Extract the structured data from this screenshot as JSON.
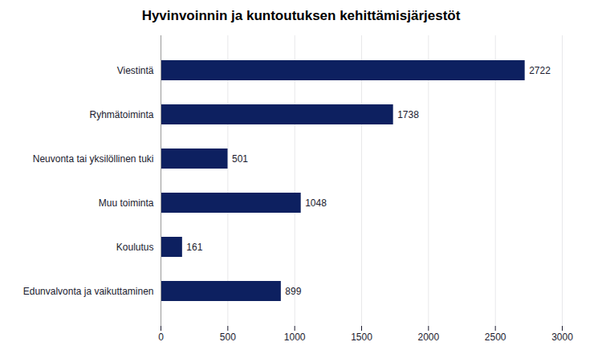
{
  "chart_data": {
    "type": "bar",
    "orientation": "horizontal",
    "title": "Hyvinvoinnin ja kuntoutuksen kehittämisjärjestöt",
    "categories": [
      "Viestintä",
      "Ryhmätoiminta",
      "Neuvonta tai yksilöllinen tuki",
      "Muu toiminta",
      "Koulutus",
      "Edunvalvonta ja vaikuttaminen"
    ],
    "values": [
      2722,
      1738,
      501,
      1048,
      161,
      899
    ],
    "color": "#0d2060",
    "xlim": [
      0,
      3000
    ],
    "xticks": [
      0,
      500,
      1000,
      1500,
      2000,
      2500,
      3000
    ],
    "grid": true,
    "data_labels": true
  }
}
